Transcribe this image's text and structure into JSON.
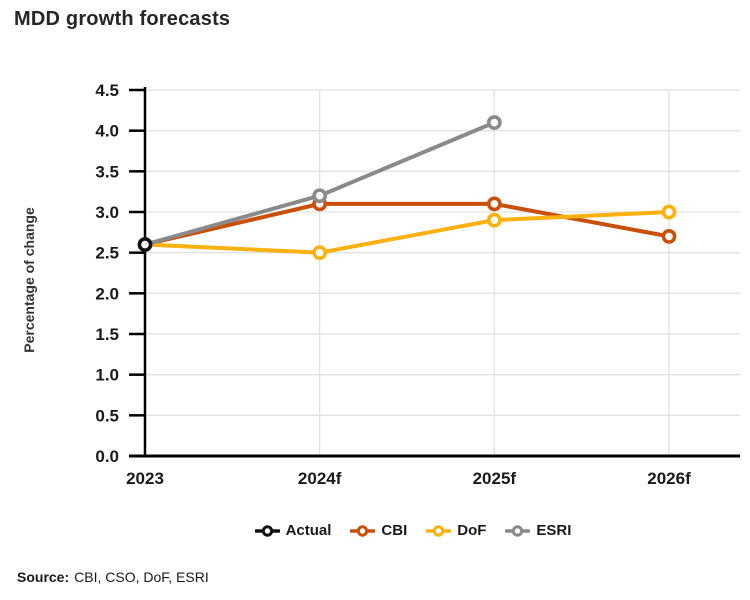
{
  "page": {
    "title": "MDD growth forecasts"
  },
  "source": {
    "label": "Source:",
    "text": "CBI, CSO, DoF, ESRI"
  },
  "chart_data": {
    "type": "line",
    "title": "MDD growth forecasts",
    "xlabel": "",
    "ylabel": "Percentage of change",
    "categories": [
      "2023",
      "2024f",
      "2025f",
      "2026f"
    ],
    "series": [
      {
        "name": "Actual",
        "color": "#111111",
        "values": [
          2.6,
          null,
          null,
          null
        ],
        "marker_at": [
          0
        ]
      },
      {
        "name": "CBI",
        "color": "#C8500A",
        "values": [
          2.6,
          3.1,
          3.1,
          2.7
        ],
        "marker_at": [
          1,
          2,
          3
        ]
      },
      {
        "name": "DoF",
        "color": "#FBB110",
        "values": [
          2.6,
          2.5,
          2.9,
          3.0
        ],
        "marker_at": [
          1,
          2,
          3
        ]
      },
      {
        "name": "ESRI",
        "color": "#8A8A8A",
        "values": [
          2.6,
          3.2,
          4.1,
          null
        ],
        "marker_at": [
          1,
          2
        ]
      }
    ],
    "ylim": [
      0,
      4.5
    ],
    "ytick_step": 0.5,
    "grid": true,
    "legend_position": "bottom",
    "colors": {
      "axis": "#000000",
      "grid": "#E2E2E2",
      "tick_label": "#1a1a1a"
    }
  }
}
